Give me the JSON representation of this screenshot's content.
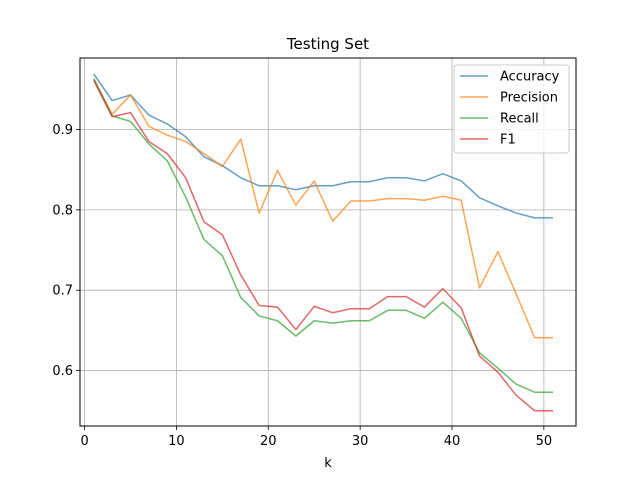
{
  "chart_data": {
    "type": "line",
    "title": "Testing Set",
    "xlabel": "k",
    "ylabel": "",
    "xlim": [
      -0.5,
      53.5
    ],
    "ylim": [
      0.531,
      0.989
    ],
    "xticks": [
      0,
      10,
      20,
      30,
      40,
      50
    ],
    "yticks": [
      0.6,
      0.7,
      0.8,
      0.9
    ],
    "ytick_labels": [
      "0.6",
      "0.7",
      "0.8",
      "0.9"
    ],
    "grid": true,
    "legend_position": "top-right",
    "x": [
      1,
      3,
      5,
      7,
      9,
      11,
      13,
      15,
      17,
      19,
      21,
      23,
      25,
      27,
      29,
      31,
      33,
      35,
      37,
      39,
      41,
      43,
      45,
      47,
      49,
      51
    ],
    "series": [
      {
        "name": "Accuracy",
        "color": "#1f77b4",
        "values": [
          0.969,
          0.936,
          0.943,
          0.918,
          0.907,
          0.891,
          0.866,
          0.855,
          0.84,
          0.83,
          0.83,
          0.825,
          0.83,
          0.83,
          0.835,
          0.835,
          0.84,
          0.84,
          0.836,
          0.845,
          0.836,
          0.815,
          0.805,
          0.796,
          0.79,
          0.79
        ]
      },
      {
        "name": "Precision",
        "color": "#ff7f0e",
        "values": [
          0.963,
          0.919,
          0.943,
          0.904,
          0.893,
          0.885,
          0.87,
          0.854,
          0.888,
          0.796,
          0.849,
          0.806,
          0.836,
          0.786,
          0.811,
          0.811,
          0.814,
          0.814,
          0.812,
          0.817,
          0.812,
          0.703,
          0.748,
          0.695,
          0.641,
          0.641
        ]
      },
      {
        "name": "Recall",
        "color": "#2ca02c",
        "values": [
          0.963,
          0.917,
          0.91,
          0.882,
          0.861,
          0.816,
          0.763,
          0.743,
          0.691,
          0.668,
          0.662,
          0.643,
          0.662,
          0.659,
          0.662,
          0.662,
          0.675,
          0.675,
          0.665,
          0.685,
          0.665,
          0.622,
          0.603,
          0.583,
          0.573,
          0.573
        ]
      },
      {
        "name": "F1",
        "color": "#d62728",
        "values": [
          0.961,
          0.916,
          0.921,
          0.885,
          0.87,
          0.84,
          0.785,
          0.769,
          0.719,
          0.681,
          0.679,
          0.651,
          0.68,
          0.672,
          0.677,
          0.677,
          0.692,
          0.692,
          0.679,
          0.702,
          0.678,
          0.618,
          0.598,
          0.569,
          0.55,
          0.55
        ]
      }
    ]
  }
}
